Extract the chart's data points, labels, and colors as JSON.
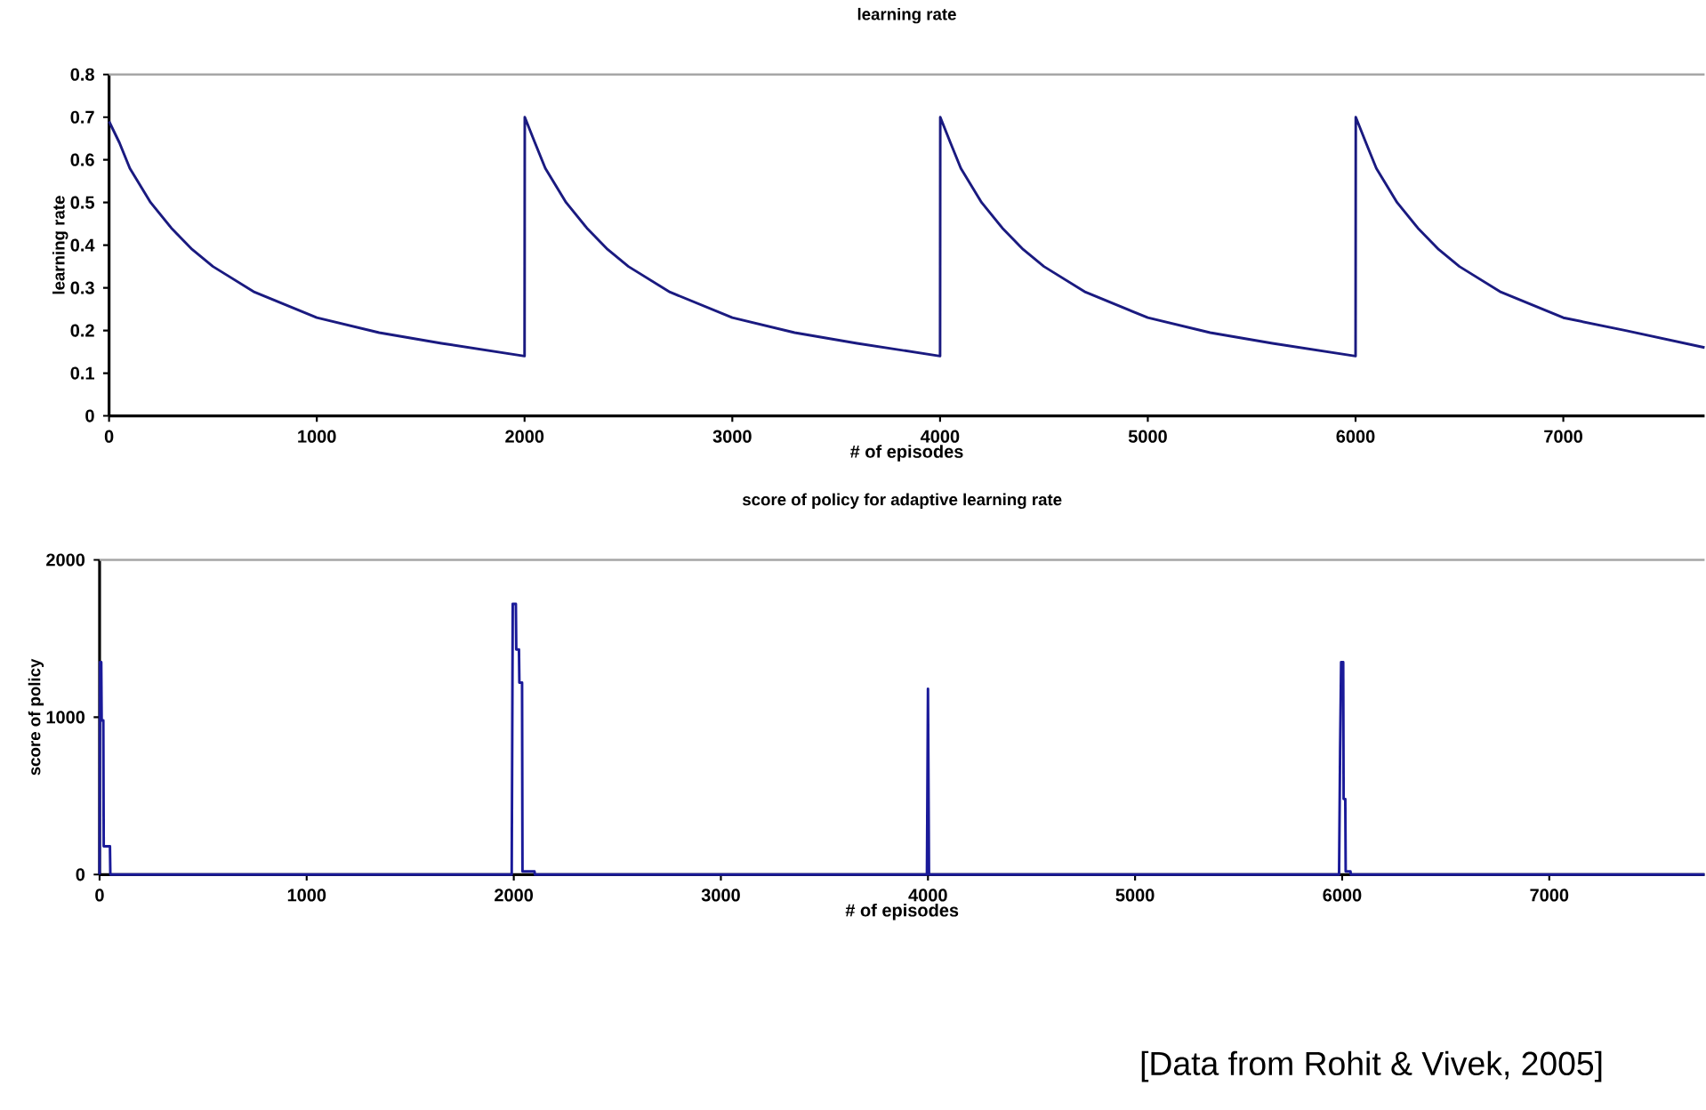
{
  "chart_data": [
    {
      "type": "line",
      "title": "learning rate",
      "xlabel": "# of episodes",
      "ylabel": "learning rate",
      "color": "#1a1a80",
      "x": [
        0,
        50,
        100,
        200,
        300,
        400,
        500,
        700,
        1000,
        1300,
        1600,
        2000,
        2001,
        2050,
        2100,
        2200,
        2300,
        2400,
        2500,
        2700,
        3000,
        3300,
        3600,
        4000,
        4001,
        4050,
        4100,
        4200,
        4300,
        4400,
        4500,
        4700,
        5000,
        5300,
        5600,
        6000,
        6001,
        6050,
        6100,
        6200,
        6300,
        6400,
        6500,
        6700,
        7000,
        7300,
        7680
      ],
      "values": [
        0.69,
        0.64,
        0.58,
        0.5,
        0.44,
        0.39,
        0.35,
        0.29,
        0.23,
        0.195,
        0.17,
        0.14,
        0.7,
        0.64,
        0.58,
        0.5,
        0.44,
        0.39,
        0.35,
        0.29,
        0.23,
        0.195,
        0.17,
        0.14,
        0.7,
        0.64,
        0.58,
        0.5,
        0.44,
        0.39,
        0.35,
        0.29,
        0.23,
        0.195,
        0.17,
        0.14,
        0.7,
        0.64,
        0.58,
        0.5,
        0.44,
        0.39,
        0.35,
        0.29,
        0.23,
        0.2,
        0.16
      ],
      "xlim": [
        0,
        7680
      ],
      "ylim": [
        0,
        0.8
      ],
      "xticks": [
        0,
        1000,
        2000,
        3000,
        4000,
        5000,
        6000,
        7000
      ],
      "yticks": [
        0,
        0.1,
        0.2,
        0.3,
        0.4,
        0.5,
        0.6,
        0.7,
        0.8
      ]
    },
    {
      "type": "line",
      "title": "score of policy for adaptive learning rate",
      "xlabel": "# of episodes",
      "ylabel": "score of policy",
      "color": "#1a1a99",
      "x": [
        0,
        2,
        8,
        10,
        18,
        20,
        50,
        52,
        1990,
        1995,
        2010,
        2012,
        2025,
        2027,
        2040,
        2042,
        2100,
        2102,
        3995,
        4000,
        4005,
        5985,
        5990,
        5995,
        6005,
        6007,
        6015,
        6017,
        6040,
        6042,
        7750
      ],
      "values": [
        0,
        1350,
        1350,
        980,
        980,
        180,
        180,
        0,
        0,
        1720,
        1720,
        1430,
        1430,
        1220,
        1220,
        20,
        20,
        0,
        0,
        1180,
        0,
        0,
        780,
        1350,
        1350,
        480,
        480,
        20,
        20,
        0,
        0
      ],
      "xlim": [
        0,
        7750
      ],
      "ylim": [
        0,
        2000
      ],
      "xticks": [
        0,
        1000,
        2000,
        3000,
        4000,
        5000,
        6000,
        7000
      ],
      "yticks": [
        0,
        1000,
        2000
      ],
      "annotations": [
        "[Data from Rohit & Vivek, 2005]"
      ]
    }
  ]
}
